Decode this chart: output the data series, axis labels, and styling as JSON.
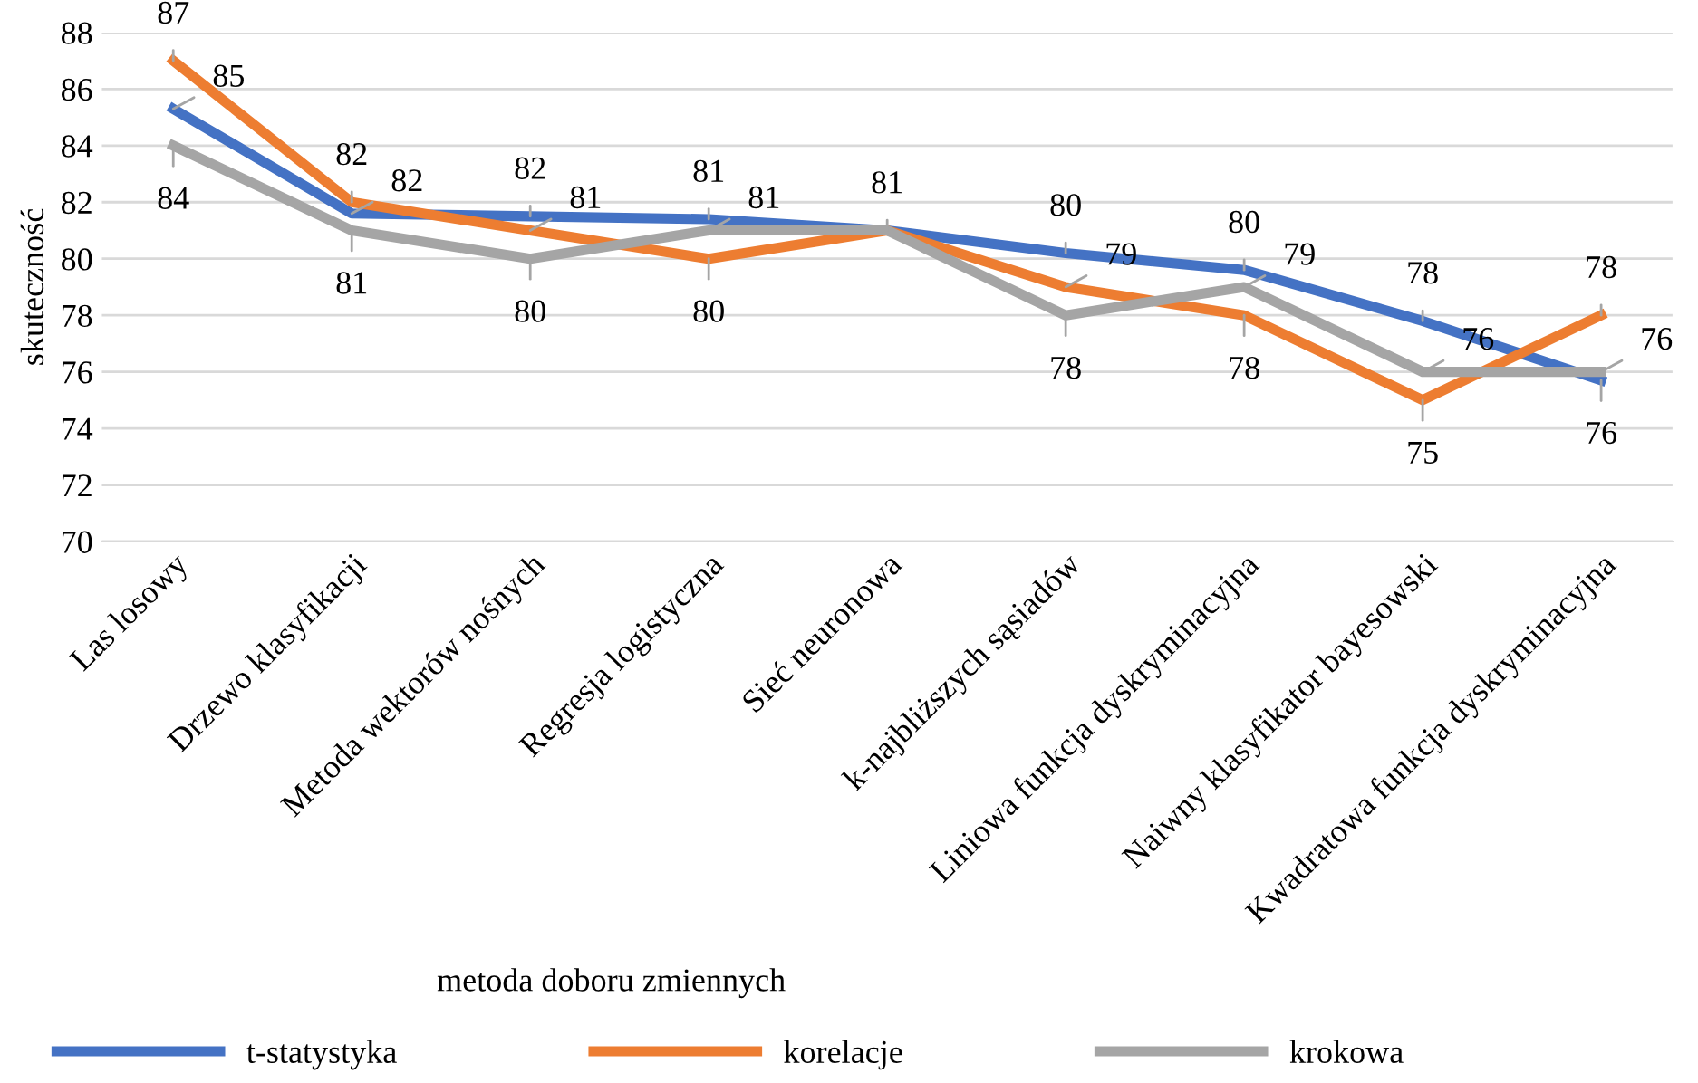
{
  "chart_data": {
    "type": "line",
    "xlabel": "metoda doboru zmiennych",
    "ylabel": "skuteczność",
    "categories": [
      "Las losowy",
      "Drzewo klasyfikacji",
      "Metoda wektorów nośnych",
      "Regresja logistyczna",
      "Sieć neuronowa",
      "k-najbliższych sąsiadów",
      "Liniowa funkcja dyskryminacyjna",
      "Naiwny klasyfikator bayesowski",
      "Kwadratowa funkcja dyskryminacyjna"
    ],
    "series": [
      {
        "name": "t-statystyka",
        "color": "#4472c4",
        "values": [
          85.3,
          81.6,
          81.5,
          81.4,
          81.0,
          80.2,
          79.6,
          77.8,
          75.7
        ],
        "value_labels": [
          "85",
          "82",
          "82",
          "81",
          "81",
          "80",
          "80",
          "78",
          "76"
        ]
      },
      {
        "name": "korelacje",
        "color": "#ed7d31",
        "values": [
          87,
          82,
          81,
          80,
          81,
          79,
          78,
          75,
          78
        ],
        "value_labels": [
          "87",
          "82",
          "81",
          "80",
          null,
          "79",
          "78",
          "75",
          "78"
        ]
      },
      {
        "name": "krokowa",
        "color": "#a5a5a5",
        "values": [
          84,
          81,
          80,
          81,
          81,
          78,
          79,
          76,
          76
        ],
        "value_labels": [
          "84",
          "81",
          "80",
          "81",
          null,
          "78",
          "79",
          "76",
          "76"
        ]
      }
    ],
    "ylim": [
      70,
      88
    ],
    "yticks": [
      70,
      72,
      74,
      76,
      78,
      80,
      82,
      84,
      86,
      88
    ],
    "grid": "y",
    "legend": "bottom",
    "marker": "none",
    "line_style": "solid"
  }
}
